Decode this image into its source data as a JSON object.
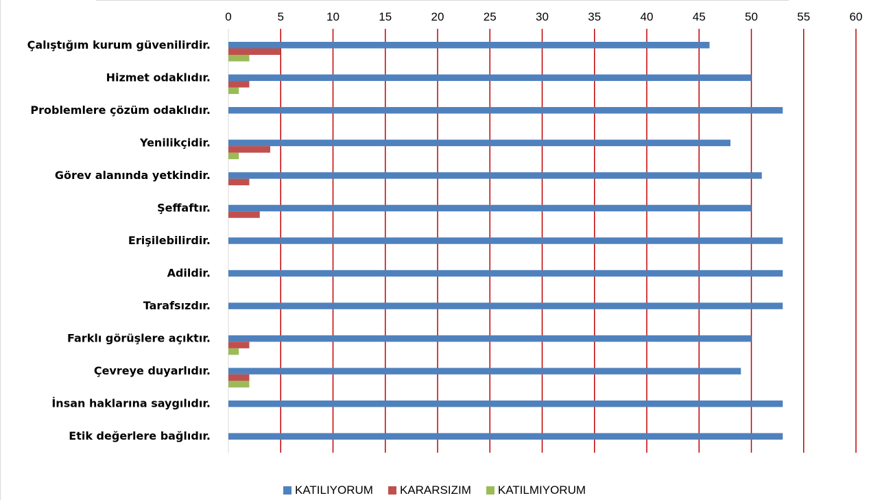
{
  "chart_data": {
    "type": "bar",
    "orientation": "horizontal",
    "categories": [
      "Çalıştığım kurum güvenilirdir.",
      "Hizmet odaklıdır.",
      "Problemlere çözüm odaklıdır.",
      "Yenilikçidir.",
      "Görev alanında yetkindir.",
      "Şeffaftır.",
      "Erişilebilirdir.",
      "Adildir.",
      "Tarafsızdır.",
      "Farklı görüşlere açıktır.",
      "Çevreye duyarlıdır.",
      "İnsan haklarına saygılıdır.",
      "Etik değerlere bağlıdır."
    ],
    "series": [
      {
        "name": "KATILIYORUM",
        "color": "#4f81bd",
        "values": [
          46,
          50,
          53,
          48,
          51,
          50,
          53,
          53,
          53,
          50,
          49,
          53,
          53
        ]
      },
      {
        "name": "KARARSIZIM",
        "color": "#c0504d",
        "values": [
          5,
          2,
          0,
          4,
          2,
          3,
          0,
          0,
          0,
          2,
          2,
          0,
          0
        ]
      },
      {
        "name": "KATILMIYORUM",
        "color": "#9bbb59",
        "values": [
          2,
          1,
          0,
          1,
          0,
          0,
          0,
          0,
          0,
          1,
          2,
          0,
          0
        ]
      }
    ],
    "xlim": [
      0,
      60
    ],
    "xticks": [
      "0",
      "5",
      "10",
      "15",
      "20",
      "25",
      "30",
      "35",
      "40",
      "45",
      "50",
      "55",
      "60"
    ],
    "xaxis_position": "top",
    "gridlines": true,
    "gridline_color": "#c00000",
    "legend_position": "bottom"
  }
}
